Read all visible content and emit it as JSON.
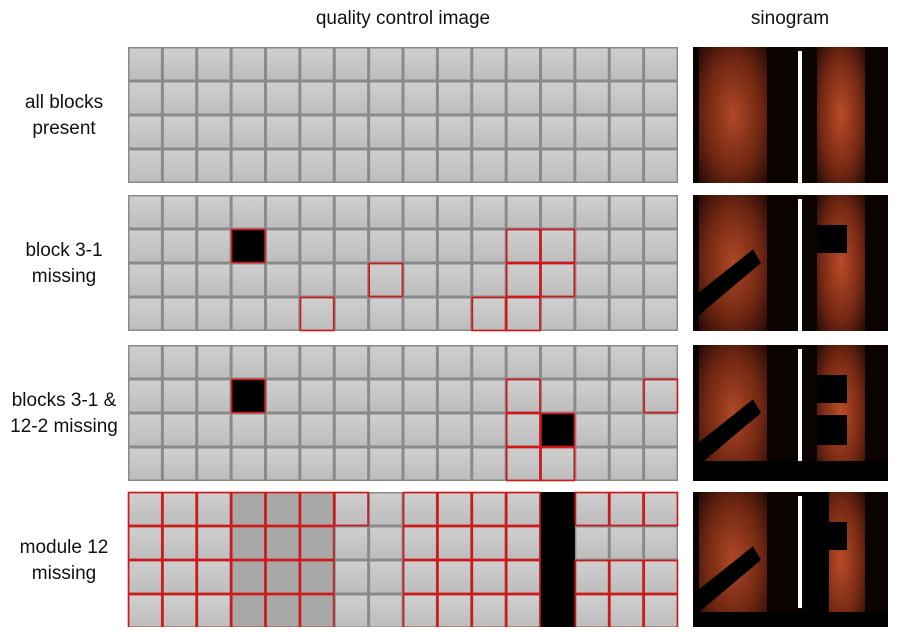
{
  "headers": {
    "qc": "quality control image",
    "sinogram": "sinogram"
  },
  "rows": [
    {
      "label": [
        "all blocks",
        "present"
      ]
    },
    {
      "label": [
        "block 3-1",
        "missing"
      ]
    },
    {
      "label": [
        "blocks 3-1 &",
        "12-2 missing"
      ]
    },
    {
      "label": [
        "module 12",
        "missing"
      ]
    }
  ]
}
